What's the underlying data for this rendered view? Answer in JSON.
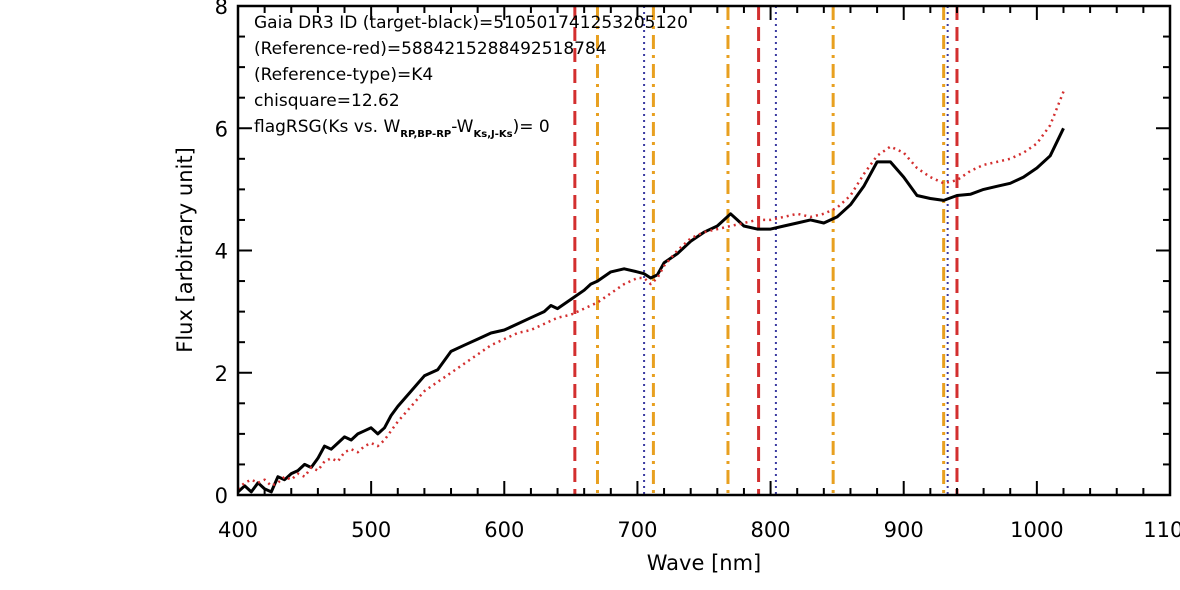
{
  "chart_data": {
    "type": "line",
    "xlabel": "Wave [nm]",
    "ylabel": "Flux [arbitrary unit]",
    "xlim": [
      400,
      1100
    ],
    "ylim": [
      0,
      8
    ],
    "xticks": [
      "400",
      "500",
      "600",
      "700",
      "800",
      "900",
      "1000",
      "1100"
    ],
    "yticks": [
      "0",
      "2",
      "4",
      "6",
      "8"
    ],
    "annotations": {
      "line1": "Gaia DR3 ID (target-black)=5105017412532051​20",
      "line2": "(Reference-red)=5884215288492518784",
      "line3": "(Reference-type)=K4",
      "line4": "chisquare=12.62",
      "line5_prefix": "flagRSG(Ks vs. W",
      "line5_sub1": "RP,BP-RP",
      "line5_mid": "-W",
      "line5_sub2": "Ks,J-Ks",
      "line5_suffix": ")= 0"
    },
    "series": [
      {
        "color": "#000000",
        "style": "solid",
        "x": [
          400,
          405,
          410,
          415,
          420,
          425,
          430,
          435,
          440,
          445,
          450,
          455,
          460,
          465,
          470,
          475,
          480,
          485,
          490,
          495,
          500,
          505,
          510,
          515,
          520,
          530,
          540,
          550,
          560,
          570,
          580,
          590,
          600,
          610,
          620,
          630,
          635,
          640,
          650,
          660,
          665,
          670,
          680,
          690,
          700,
          705,
          710,
          715,
          720,
          730,
          740,
          750,
          760,
          770,
          775,
          780,
          790,
          800,
          810,
          820,
          830,
          840,
          850,
          860,
          870,
          880,
          890,
          900,
          910,
          920,
          930,
          940,
          950,
          960,
          970,
          980,
          990,
          1000,
          1010,
          1020
        ],
        "values": [
          0.05,
          0.15,
          0.05,
          0.2,
          0.1,
          0.05,
          0.3,
          0.25,
          0.35,
          0.4,
          0.5,
          0.45,
          0.6,
          0.8,
          0.75,
          0.85,
          0.95,
          0.9,
          1.0,
          1.05,
          1.1,
          1.0,
          1.1,
          1.3,
          1.45,
          1.7,
          1.95,
          2.05,
          2.35,
          2.45,
          2.55,
          2.65,
          2.7,
          2.8,
          2.9,
          3.0,
          3.1,
          3.05,
          3.2,
          3.35,
          3.45,
          3.5,
          3.65,
          3.7,
          3.65,
          3.62,
          3.55,
          3.6,
          3.8,
          3.95,
          4.15,
          4.3,
          4.4,
          4.6,
          4.5,
          4.4,
          4.35,
          4.35,
          4.4,
          4.45,
          4.5,
          4.45,
          4.55,
          4.75,
          5.05,
          5.45,
          5.45,
          5.2,
          4.9,
          4.85,
          4.82,
          4.9,
          4.92,
          5.0,
          5.05,
          5.1,
          5.2,
          5.35,
          5.55,
          6.0
        ]
      },
      {
        "color": "#d32f2f",
        "style": "dotted",
        "x": [
          400,
          405,
          410,
          415,
          420,
          425,
          430,
          435,
          440,
          445,
          450,
          455,
          460,
          465,
          470,
          475,
          480,
          485,
          490,
          495,
          500,
          505,
          510,
          515,
          520,
          530,
          540,
          550,
          560,
          570,
          580,
          590,
          600,
          610,
          620,
          630,
          640,
          650,
          660,
          670,
          680,
          690,
          700,
          705,
          710,
          715,
          720,
          730,
          740,
          750,
          760,
          770,
          780,
          790,
          800,
          810,
          820,
          830,
          840,
          850,
          860,
          870,
          880,
          890,
          900,
          910,
          920,
          930,
          940,
          950,
          960,
          970,
          980,
          990,
          1000,
          1010,
          1020
        ],
        "values": [
          0.1,
          0.2,
          0.25,
          0.2,
          0.25,
          0.15,
          0.2,
          0.3,
          0.25,
          0.35,
          0.3,
          0.45,
          0.4,
          0.55,
          0.6,
          0.55,
          0.7,
          0.75,
          0.7,
          0.8,
          0.85,
          0.8,
          0.9,
          1.05,
          1.2,
          1.45,
          1.7,
          1.85,
          2.0,
          2.15,
          2.3,
          2.45,
          2.55,
          2.65,
          2.7,
          2.8,
          2.9,
          2.95,
          3.05,
          3.15,
          3.3,
          3.45,
          3.55,
          3.55,
          3.45,
          3.55,
          3.75,
          4.0,
          4.2,
          4.3,
          4.35,
          4.4,
          4.45,
          4.5,
          4.5,
          4.55,
          4.6,
          4.55,
          4.6,
          4.7,
          4.9,
          5.25,
          5.55,
          5.7,
          5.6,
          5.35,
          5.2,
          5.1,
          5.15,
          5.3,
          5.4,
          5.45,
          5.5,
          5.6,
          5.75,
          6.05,
          6.6
        ]
      }
    ],
    "vlines": [
      {
        "x": 653,
        "color": "#d32f2f",
        "style": "dashed"
      },
      {
        "x": 670,
        "color": "#e8a020",
        "style": "dashdot"
      },
      {
        "x": 705,
        "color": "#3a3aa0",
        "style": "dotted"
      },
      {
        "x": 712,
        "color": "#e8a020",
        "style": "dashdot"
      },
      {
        "x": 768,
        "color": "#e8a020",
        "style": "dashdot"
      },
      {
        "x": 791,
        "color": "#d32f2f",
        "style": "dashed"
      },
      {
        "x": 804,
        "color": "#3a3aa0",
        "style": "dotted"
      },
      {
        "x": 847,
        "color": "#e8a020",
        "style": "dashdot"
      },
      {
        "x": 930,
        "color": "#e8a020",
        "style": "dashdot"
      },
      {
        "x": 933,
        "color": "#3a3aa0",
        "style": "dotted"
      },
      {
        "x": 940,
        "color": "#d32f2f",
        "style": "dashed"
      }
    ]
  }
}
